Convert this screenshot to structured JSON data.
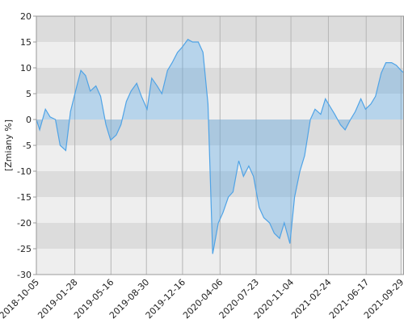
{
  "chart_data": {
    "type": "area",
    "ylabel": "[Zmiany %]",
    "xlim": [
      "2018-10-05",
      "2021-10-08"
    ],
    "xticks": [
      "2018-10-05",
      "2019-01-28",
      "2019-05-16",
      "2019-08-30",
      "2019-12-16",
      "2020-04-06",
      "2020-07-23",
      "2020-11-04",
      "2021-02-24",
      "2021-06-17",
      "2021-09-29"
    ],
    "ylim": [
      -30,
      20
    ],
    "yticks": [
      -30,
      -25,
      -20,
      -15,
      -10,
      -5,
      0,
      5,
      10,
      15,
      20
    ],
    "grid": true,
    "series": [
      {
        "color": "#4fa3e6",
        "x": [
          "2018-10-05",
          "2018-10-15",
          "2018-11-01",
          "2018-11-15",
          "2018-12-01",
          "2018-12-15",
          "2019-01-01",
          "2019-01-15",
          "2019-02-01",
          "2019-02-15",
          "2019-03-01",
          "2019-03-15",
          "2019-04-01",
          "2019-04-15",
          "2019-05-01",
          "2019-05-15",
          "2019-06-01",
          "2019-06-15",
          "2019-07-01",
          "2019-07-15",
          "2019-08-01",
          "2019-08-15",
          "2019-09-01",
          "2019-09-15",
          "2019-10-01",
          "2019-10-15",
          "2019-11-01",
          "2019-11-15",
          "2019-12-01",
          "2019-12-15",
          "2020-01-01",
          "2020-01-15",
          "2020-02-01",
          "2020-02-15",
          "2020-03-01",
          "2020-03-15",
          "2020-04-01",
          "2020-04-15",
          "2020-05-01",
          "2020-05-15",
          "2020-06-01",
          "2020-06-15",
          "2020-07-01",
          "2020-07-15",
          "2020-08-01",
          "2020-08-15",
          "2020-09-01",
          "2020-09-15",
          "2020-10-01",
          "2020-10-15",
          "2020-11-01",
          "2020-11-15",
          "2020-12-01",
          "2020-12-15",
          "2021-01-01",
          "2021-01-15",
          "2021-02-01",
          "2021-02-15",
          "2021-03-01",
          "2021-03-15",
          "2021-04-01",
          "2021-04-15",
          "2021-05-01",
          "2021-05-15",
          "2021-06-01",
          "2021-06-15",
          "2021-07-01",
          "2021-07-15",
          "2021-08-01",
          "2021-08-15",
          "2021-09-01",
          "2021-09-15",
          "2021-09-29",
          "2021-10-08"
        ],
        "values": [
          0,
          -2,
          2,
          0.5,
          0,
          -5,
          -6,
          1.5,
          6,
          9.5,
          8.5,
          5.5,
          6.5,
          4.5,
          -1,
          -4,
          -3,
          -1,
          3.5,
          5.5,
          7,
          4.5,
          2,
          8,
          6.5,
          5,
          9.5,
          11,
          13,
          14,
          15.5,
          15,
          15,
          13,
          3,
          -26,
          -20,
          -18,
          -15,
          -14,
          -8,
          -11,
          -9,
          -11,
          -17,
          -19,
          -20,
          -22,
          -23,
          -20,
          -24,
          -15,
          -10,
          -7,
          0,
          2,
          1,
          4,
          2.5,
          1,
          -1,
          -2,
          0,
          1.5,
          4,
          2,
          3,
          4.5,
          9,
          11,
          11,
          10.5,
          9.5,
          9
        ]
      }
    ]
  }
}
